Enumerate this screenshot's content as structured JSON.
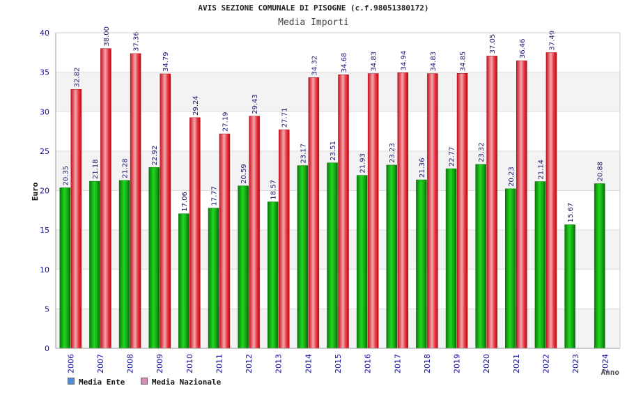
{
  "chart_data": {
    "type": "bar",
    "title": "AVIS SEZIONE COMUNALE DI PISOGNE (c.f.98051380172)",
    "subtitle": "Media Importi",
    "xlabel": "Anno",
    "ylabel": "Euro",
    "ylim": [
      0,
      40
    ],
    "yticks": [
      0,
      5,
      10,
      15,
      20,
      25,
      30,
      35,
      40
    ],
    "categories": [
      "2006",
      "2007",
      "2008",
      "2009",
      "2010",
      "2011",
      "2012",
      "2013",
      "2014",
      "2015",
      "2016",
      "2017",
      "2018",
      "2019",
      "2020",
      "2021",
      "2022",
      "2023",
      "2024"
    ],
    "series": [
      {
        "name": "Media Ente",
        "values": [
          20.35,
          21.18,
          21.28,
          22.92,
          17.06,
          17.77,
          20.59,
          18.57,
          23.17,
          23.51,
          21.93,
          23.23,
          21.36,
          22.77,
          23.32,
          20.23,
          21.14,
          15.67,
          20.88
        ],
        "labels": [
          "20.35",
          "21.18",
          "21.28",
          "22.92",
          "17.06",
          "17.77",
          "20.59",
          "18.57",
          "23.17",
          "23.51",
          "21.93",
          "23.23",
          "21.36",
          "22.77",
          "23.32",
          "20.23",
          "21.14",
          "15.67",
          "20.88"
        ],
        "color": "#14b814",
        "legend_color": "#4a90e2"
      },
      {
        "name": "Media Nazionale",
        "values": [
          32.82,
          38.0,
          37.36,
          34.79,
          29.24,
          27.19,
          29.43,
          27.71,
          34.32,
          34.68,
          34.83,
          34.94,
          34.83,
          34.85,
          37.05,
          36.46,
          37.49,
          null,
          null
        ],
        "labels": [
          "32.82",
          "38.00",
          "37.36",
          "34.79",
          "29.24",
          "27.19",
          "29.43",
          "27.71",
          "34.32",
          "34.68",
          "34.83",
          "34.94",
          "34.83",
          "34.85",
          "37.05",
          "36.46",
          "37.49",
          "",
          ""
        ],
        "color": "#e8323c",
        "legend_color": "#d98cb4"
      }
    ],
    "grid": true,
    "legend": "bottom-left"
  }
}
